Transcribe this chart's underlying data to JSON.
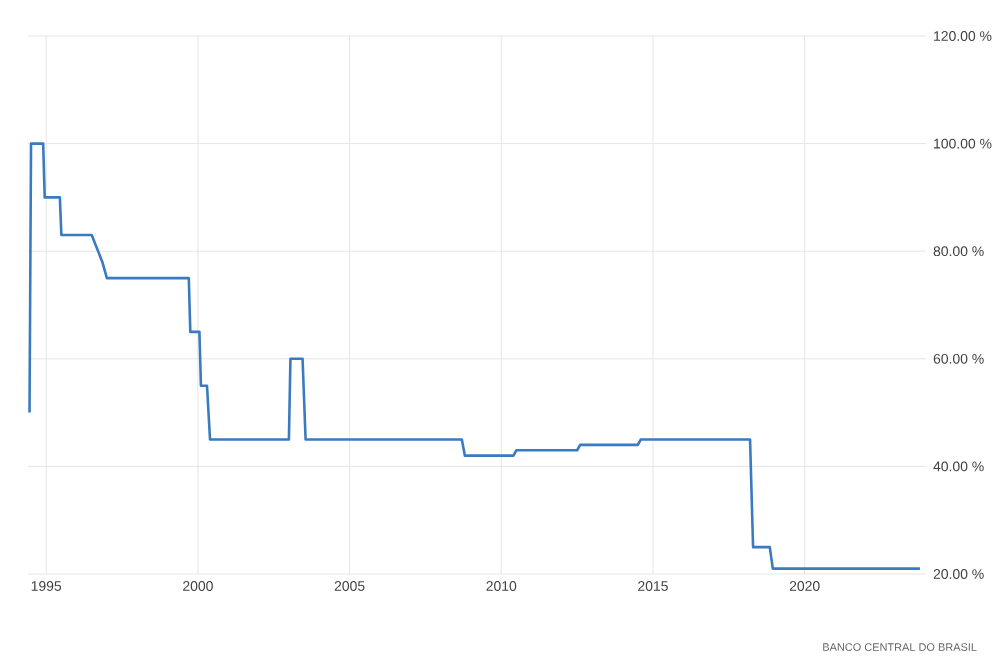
{
  "chart_data": {
    "type": "line",
    "annotations": [
      "BANCO CENTRAL DO BRASIL"
    ],
    "xlim": [
      1994.4,
      2024
    ],
    "xticks": [
      1995,
      2000,
      2005,
      2010,
      2015,
      2020
    ],
    "ylim": [
      20,
      120
    ],
    "yticks": [
      {
        "value": 20,
        "label": "20.00 %"
      },
      {
        "value": 40,
        "label": "40.00 %"
      },
      {
        "value": 60,
        "label": "60.00 %"
      },
      {
        "value": 80,
        "label": "80.00 %"
      },
      {
        "value": 100,
        "label": "100.00 %"
      },
      {
        "value": 120,
        "label": "120.00 %"
      }
    ],
    "grid": true,
    "marker": "none",
    "line_style": "solid",
    "series": [
      {
        "color": "#3a7bbf",
        "x": [
          1994.45,
          1994.5,
          1994.9,
          1994.95,
          1995.45,
          1995.5,
          1996.5,
          1996.85,
          1997.0,
          1999.7,
          1999.75,
          2000.05,
          2000.1,
          2000.3,
          2000.4,
          2003.0,
          2003.05,
          2003.45,
          2003.55,
          2008.7,
          2008.8,
          2010.4,
          2010.5,
          2012.5,
          2012.6,
          2014.5,
          2014.6,
          2018.2,
          2018.3,
          2018.85,
          2018.95,
          2023.8
        ],
        "values": [
          50,
          100,
          100,
          90,
          90,
          83,
          83,
          78,
          75,
          75,
          65,
          65,
          55,
          55,
          45,
          45,
          60,
          60,
          45,
          45,
          42,
          42,
          43,
          43,
          44,
          44,
          45,
          45,
          25,
          25,
          21,
          21
        ]
      }
    ]
  }
}
